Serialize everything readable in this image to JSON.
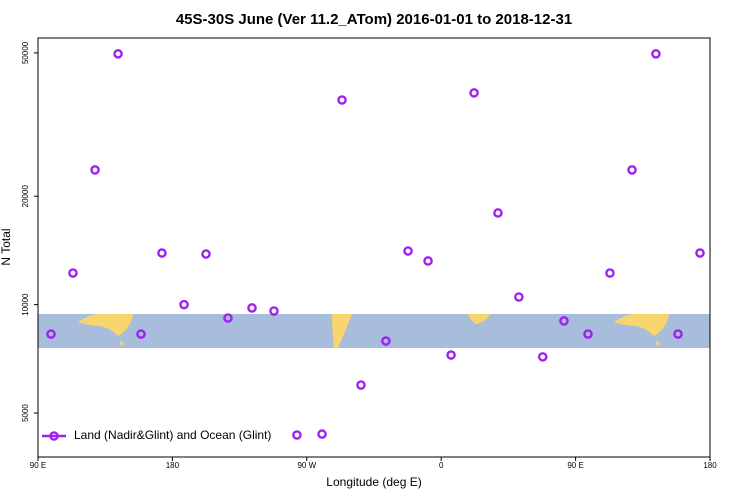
{
  "chart_data": {
    "type": "scatter",
    "title": "45S-30S June (Ver 11.2_ATom)   2016-01-01 to 2018-12-31",
    "x_label": "Longitude (deg E)",
    "y_label": "N Total",
    "yscale": "log",
    "legend": "lower left",
    "xlim": [
      90,
      540
    ],
    "ylim": [
      3775,
      55000
    ],
    "xticks": [
      {
        "value": 90,
        "label": "90 E"
      },
      {
        "value": 180,
        "label": "180"
      },
      {
        "value": 270,
        "label": "90 W"
      },
      {
        "value": 360,
        "label": "0"
      },
      {
        "value": 450,
        "label": "90 E"
      },
      {
        "value": 540,
        "label": "180"
      }
    ],
    "yticks": [
      5000,
      10000,
      20000,
      50000
    ],
    "series": [
      {
        "name": "Land (Nadir&Glint) and Ocean (Glint)",
        "color": "#a020f0",
        "x": [
          98.7,
          113.4,
          128.2,
          143.6,
          159,
          173,
          187.8,
          202.5,
          217.2,
          233.3,
          248,
          263.4,
          280.2,
          293.6,
          306.3,
          323,
          337.8,
          351.2,
          366.6,
          382,
          398,
          412,
          428,
          442.2,
          458.3,
          473,
          487.8,
          503.8,
          518.6,
          533.3
        ],
        "values": [
          8285,
          12240,
          23660,
          49700,
          8285,
          13910,
          10000,
          13820,
          9180,
          9790,
          9600,
          4345,
          4370,
          37000,
          5980,
          7925,
          14090,
          13220,
          7245,
          38720,
          17970,
          10500,
          7160,
          9010,
          8285,
          12240,
          23660,
          49700,
          8285,
          13910
        ]
      }
    ]
  }
}
